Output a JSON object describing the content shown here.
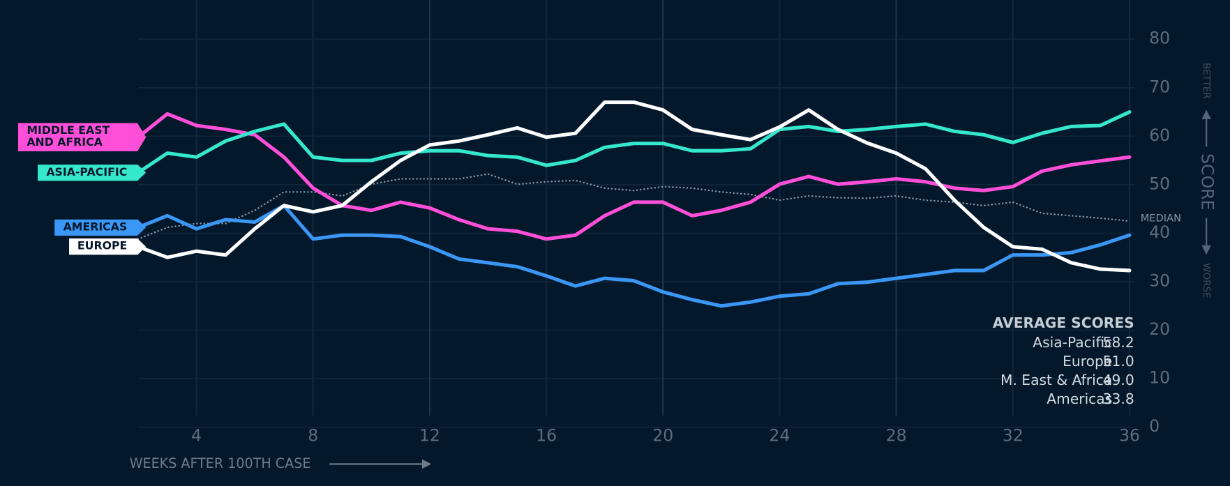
{
  "chart_data": {
    "type": "line",
    "xlabel": "WEEKS AFTER 100TH CASE",
    "ylabel": "SCORE",
    "y_annotations": {
      "top": "BETTER",
      "bottom": "WORSE"
    },
    "x": [
      2,
      3,
      4,
      5,
      6,
      7,
      8,
      9,
      10,
      11,
      12,
      13,
      14,
      15,
      16,
      17,
      18,
      19,
      20,
      21,
      22,
      23,
      24,
      25,
      26,
      27,
      28,
      29,
      30,
      31,
      32,
      33,
      34,
      35,
      36
    ],
    "xlim": [
      2,
      36
    ],
    "xticks": [
      4,
      8,
      12,
      16,
      20,
      24,
      28,
      32,
      36
    ],
    "ylim": [
      0,
      80
    ],
    "yticks": [
      0,
      10,
      20,
      30,
      40,
      50,
      60,
      70,
      80
    ],
    "grid": true,
    "legend": "left",
    "series": [
      {
        "name": "ASIA-PACIFIC",
        "color": "#35e8cc",
        "values": [
          52.5,
          56.5,
          55.7,
          59,
          61,
          62.5,
          55.7,
          55,
          55,
          56.5,
          57,
          57,
          56,
          55.7,
          54,
          55,
          57.7,
          58.5,
          58.5,
          57,
          57,
          57.4,
          61.4,
          62,
          61,
          61.4,
          62,
          62.5,
          61,
          60.3,
          58.7,
          60.6,
          62,
          62.2,
          65
        ]
      },
      {
        "name": "EUROPE",
        "color": "#ffffff",
        "values": [
          37.2,
          35,
          36.3,
          35.5,
          40.9,
          45.7,
          44.4,
          45.7,
          50.6,
          55,
          58.2,
          59,
          60.3,
          61.7,
          59.8,
          60.6,
          67,
          67,
          65.4,
          61.4,
          60.3,
          59.3,
          61.9,
          65.4,
          61.4,
          58.6,
          56.5,
          53.3,
          46.8,
          41.2,
          37.2,
          36.7,
          33.9,
          32.6,
          32.3
        ]
      },
      {
        "name": "MIDDLE EAST AND AFRICA",
        "color": "#ff4fd8",
        "values": [
          59.8,
          64.6,
          62.2,
          61.4,
          60.3,
          55.7,
          49.3,
          45.7,
          44.7,
          46.4,
          45.2,
          42.8,
          40.9,
          40.4,
          38.8,
          39.6,
          43.6,
          46.4,
          46.4,
          43.6,
          44.7,
          46.4,
          50.1,
          51.7,
          50.1,
          50.6,
          51.2,
          50.6,
          49.3,
          48.8,
          49.6,
          52.8,
          54.1,
          54.9,
          55.7
        ]
      },
      {
        "name": "AMERICAS",
        "color": "#3b97f5",
        "values": [
          41.2,
          43.6,
          40.9,
          42.8,
          42.3,
          45.7,
          38.8,
          39.6,
          39.6,
          39.3,
          37.2,
          34.7,
          33.9,
          33.1,
          31.2,
          29.1,
          30.7,
          30.2,
          27.9,
          26.3,
          25,
          25.8,
          27,
          27.5,
          29.6,
          29.9,
          30.7,
          31.5,
          32.3,
          32.3,
          35.5,
          35.5,
          36,
          37.6,
          39.6
        ]
      },
      {
        "name": "MEDIAN",
        "color": "#8795a5",
        "style": "dotted",
        "values": [
          38.8,
          41.2,
          42,
          42,
          44.7,
          48.5,
          48.5,
          47.7,
          50.1,
          51.2,
          51.2,
          51.2,
          52.2,
          50.1,
          50.6,
          50.9,
          49.3,
          48.8,
          49.6,
          49.3,
          48.5,
          48,
          46.8,
          47.7,
          47.3,
          47.2,
          47.7,
          46.8,
          46.4,
          45.7,
          46.4,
          44.1,
          43.6,
          43.1,
          42.5
        ]
      }
    ],
    "average_scores": {
      "title": "AVERAGE SCORES",
      "names": [
        "Asia-Pacific",
        "Europe",
        "M. East & Africa",
        "Americas"
      ],
      "values": [
        58.2,
        51.0,
        49.0,
        33.8
      ],
      "value_labels": [
        "58.2",
        "51.0",
        "49.0",
        "33.8"
      ]
    }
  }
}
